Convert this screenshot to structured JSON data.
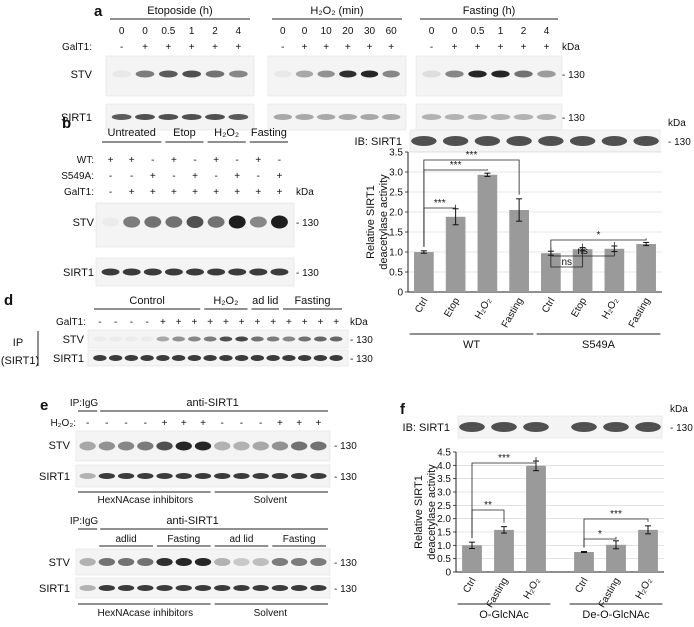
{
  "panel_a": {
    "label": "a",
    "groups": [
      {
        "title": "Etoposide (h)",
        "times": [
          "0",
          "0",
          "0.5",
          "1",
          "2",
          "4"
        ],
        "galt1": [
          "-",
          "+",
          "+",
          "+",
          "+",
          "+"
        ],
        "stv": [
          0.05,
          0.55,
          0.7,
          0.75,
          0.6,
          0.5
        ],
        "sirt1": [
          0.7,
          0.75,
          0.75,
          0.75,
          0.75,
          0.7
        ]
      },
      {
        "title": "H₂O₂ (min)",
        "times": [
          "0",
          "0",
          "10",
          "20",
          "30",
          "60"
        ],
        "galt1": [
          "-",
          "+",
          "+",
          "+",
          "+",
          "+"
        ],
        "stv": [
          0.05,
          0.35,
          0.45,
          0.9,
          0.95,
          0.5
        ],
        "sirt1": [
          0.35,
          0.35,
          0.35,
          0.35,
          0.35,
          0.35
        ]
      },
      {
        "title": "Fasting (h)",
        "times": [
          "0",
          "0",
          "0.5",
          "1",
          "2",
          "4"
        ],
        "galt1": [
          "-",
          "+",
          "+",
          "+",
          "+",
          "+"
        ],
        "stv": [
          0.1,
          0.5,
          0.95,
          0.95,
          0.6,
          0.4
        ],
        "sirt1": [
          0.3,
          0.3,
          0.3,
          0.3,
          0.3,
          0.3
        ]
      }
    ],
    "row_galt1": "GalT1:",
    "row_stv": "STV",
    "row_sirt1": "SIRT1",
    "kda": "kDa",
    "mw": "- 130"
  },
  "panel_b": {
    "label": "b",
    "groups": [
      "Untreated",
      "Etop",
      "H₂O₂",
      "Fasting"
    ],
    "rows": [
      {
        "label": "WT:",
        "signs": [
          "+",
          "+",
          "-",
          "+",
          "-",
          "+",
          "-",
          "+",
          "-"
        ]
      },
      {
        "label": "S549A:",
        "signs": [
          "-",
          "-",
          "+",
          "-",
          "+",
          "-",
          "+",
          "-",
          "+"
        ]
      },
      {
        "label": "GalT1:",
        "signs": [
          "-",
          "+",
          "+",
          "+",
          "+",
          "+",
          "+",
          "+",
          "+"
        ]
      }
    ],
    "stv": [
      0.02,
      0.55,
      0.6,
      0.6,
      0.75,
      0.6,
      0.98,
      0.5,
      0.98
    ],
    "sirt1": [
      0.85,
      0.85,
      0.85,
      0.85,
      0.85,
      0.85,
      0.85,
      0.85,
      0.85
    ],
    "row_stv": "STV",
    "row_sirt1": "SIRT1",
    "kda": "kDa",
    "mw": "- 130"
  },
  "panel_c": {
    "label": "c",
    "blot_label": "IB: SIRT1",
    "kda": "kDa",
    "mw": "- 130",
    "group_labels": [
      "WT",
      "S549A"
    ],
    "significance": [
      {
        "from": 0,
        "to": 1,
        "text": "***"
      },
      {
        "from": 0,
        "to": 2,
        "text": "***"
      },
      {
        "from": 0,
        "to": 3,
        "text": "***"
      },
      {
        "from": 4,
        "to": 5,
        "text": "ns"
      },
      {
        "from": 4,
        "to": 6,
        "text": "ns"
      },
      {
        "from": 4,
        "to": 7,
        "text": "*"
      }
    ]
  },
  "panel_d": {
    "label": "d",
    "groups": [
      "Control",
      "H₂O₂",
      "ad lid",
      "Fasting"
    ],
    "galt1_label": "GalT1:",
    "galt1": [
      "-",
      "-",
      "-",
      "-",
      "+",
      "+",
      "+",
      "+",
      "+",
      "+",
      "+",
      "+",
      "+",
      "+",
      "+",
      "+"
    ],
    "ip_label": "IP",
    "ip_target": "(SIRT1)",
    "row_stv": "STV",
    "row_sirt1": "SIRT1",
    "stv": [
      0.02,
      0.02,
      0.02,
      0.02,
      0.35,
      0.45,
      0.5,
      0.55,
      0.75,
      0.8,
      0.6,
      0.55,
      0.5,
      0.6,
      0.65,
      0.65
    ],
    "kda": "kDa",
    "mw": "- 130"
  },
  "panel_e": {
    "label": "e",
    "top": {
      "ip_igg": "IP:IgG",
      "ip_anti": "anti-SIRT1",
      "h2o2_label": "H₂O₂:",
      "h2o2": [
        "-",
        "-",
        "-",
        "-",
        "+",
        "+",
        "+",
        "-",
        "-",
        "-",
        "+",
        "+",
        "+"
      ],
      "stv": [
        0.35,
        0.45,
        0.5,
        0.55,
        0.75,
        0.95,
        0.95,
        0.3,
        0.3,
        0.35,
        0.45,
        0.6,
        0.6
      ],
      "bottom_left": "HexNAcase inhibitors",
      "bottom_right": "Solvent"
    },
    "bottom": {
      "ip_igg": "IP:IgG",
      "ip_anti": "anti-SIRT1",
      "groups": [
        "adlid",
        "Fasting",
        "ad lid",
        "Fasting"
      ],
      "stv": [
        0.3,
        0.6,
        0.6,
        0.6,
        0.9,
        0.95,
        0.95,
        0.3,
        0.2,
        0.25,
        0.55,
        0.55,
        0.55
      ],
      "bottom_left": "HexNAcase inhibitors",
      "bottom_right": "Solvent"
    },
    "row_stv": "STV",
    "row_sirt1": "SIRT1",
    "mw": "- 130"
  },
  "panel_f": {
    "label": "f",
    "blot_label": "IB: SIRT1",
    "kda": "kDa",
    "mw": "- 130",
    "group_labels": [
      "O-GlcNAc",
      "De-O-GlcNAc"
    ],
    "significance": [
      {
        "from": 0,
        "to": 1,
        "text": "**"
      },
      {
        "from": 0,
        "to": 2,
        "text": "***"
      },
      {
        "from": 3,
        "to": 4,
        "text": "*"
      },
      {
        "from": 3,
        "to": 5,
        "text": "***"
      }
    ]
  },
  "chart_data": [
    {
      "type": "bar",
      "panel": "c",
      "categories": [
        "Ctrl",
        "Etop",
        "H₂O₂",
        "Fasting",
        "Ctrl",
        "Etop",
        "H₂O₂",
        "Fasting"
      ],
      "groups": [
        "WT",
        "WT",
        "WT",
        "WT",
        "S549A",
        "S549A",
        "S549A",
        "S549A"
      ],
      "values": [
        1.0,
        1.88,
        2.93,
        2.05,
        0.97,
        1.07,
        1.08,
        1.2
      ],
      "errors": [
        0.03,
        0.2,
        0.04,
        0.28,
        0.05,
        0.04,
        0.07,
        0.04
      ],
      "ylabel": "Relative SIRT1\ndeacetylase activity",
      "ylim": [
        0,
        3.5
      ],
      "yticks": [
        "0",
        "0.5",
        "1.0",
        "1.5",
        "2.0",
        "2.5",
        "3.0",
        "3.5"
      ],
      "grid": true
    },
    {
      "type": "bar",
      "panel": "f",
      "categories": [
        "Ctrl",
        "Fasting",
        "H₂O₂",
        "Ctrl",
        "Fasting",
        "H₂O₂"
      ],
      "groups": [
        "O-GlcNAc",
        "O-GlcNAc",
        "O-GlcNAc",
        "De-O-GlcNAc",
        "De-O-GlcNAc",
        "De-O-GlcNAc"
      ],
      "values": [
        1.0,
        1.58,
        3.98,
        0.75,
        1.02,
        1.58
      ],
      "errors": [
        0.12,
        0.12,
        0.18,
        0.02,
        0.15,
        0.15
      ],
      "ylabel": "Relative SIRT1\ndeacetylase activity",
      "ylim": [
        0,
        4.5
      ],
      "yticks": [
        "0",
        "0.5",
        "1.0",
        "1.5",
        "2.0",
        "2.5",
        "3.0",
        "3.5",
        "4.0",
        "4.5"
      ],
      "grid": true
    }
  ]
}
